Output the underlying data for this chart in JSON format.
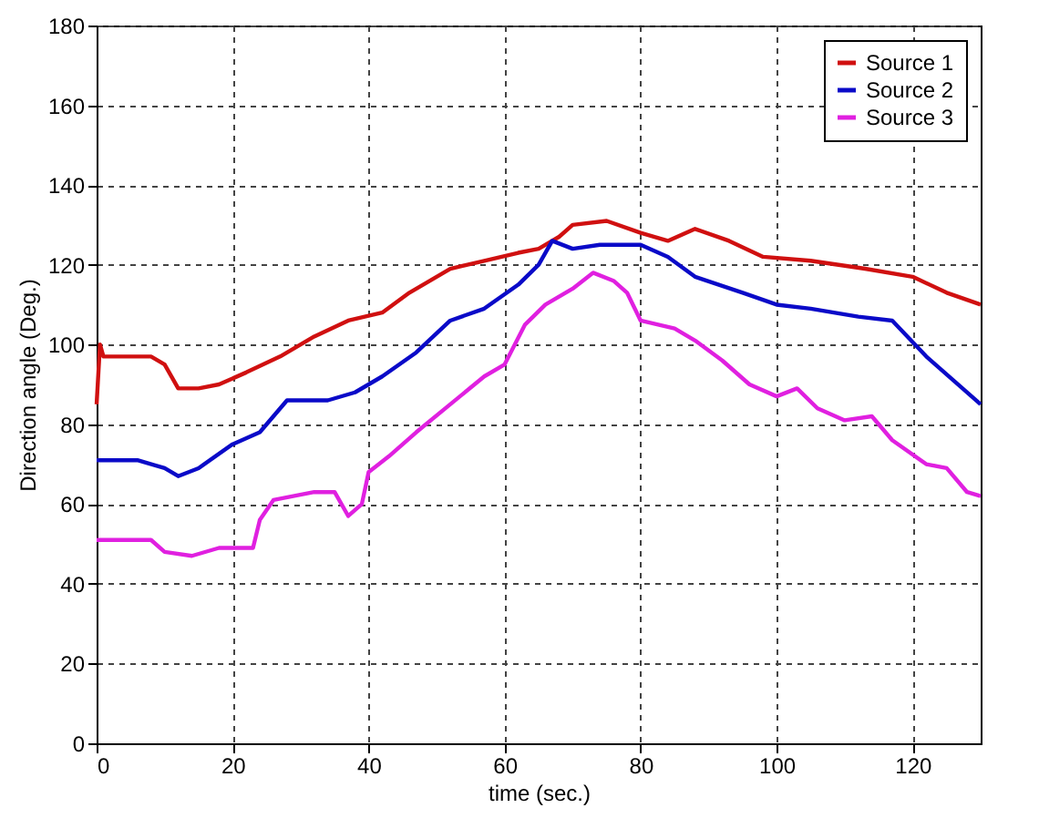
{
  "chart_data": {
    "type": "line",
    "xlabel": "time (sec.)",
    "ylabel": "Direction angle (Deg.)",
    "xlim": [
      0,
      130
    ],
    "xticks": [
      0,
      20,
      40,
      60,
      80,
      100,
      120
    ],
    "ylim": [
      0,
      180
    ],
    "yticks": [
      0,
      20,
      40,
      60,
      80,
      100,
      120,
      140,
      160,
      180
    ],
    "grid": true,
    "legend": "top right",
    "line_style": "solid",
    "marker": "none",
    "series": [
      {
        "name": "Source 1",
        "color": "#d01010",
        "x": [
          0,
          0.5,
          1,
          8,
          10,
          12,
          15,
          18,
          22,
          27,
          32,
          37,
          42,
          46,
          52,
          57,
          62,
          65,
          68,
          70,
          75,
          80,
          84,
          88,
          93,
          98,
          105,
          113,
          120,
          125,
          130
        ],
        "values": [
          85,
          100,
          97,
          97,
          95,
          89,
          89,
          90,
          93,
          97,
          102,
          106,
          108,
          113,
          119,
          121,
          123,
          124,
          127,
          130,
          131,
          128,
          126,
          129,
          126,
          122,
          121,
          119,
          117,
          113,
          110
        ]
      },
      {
        "name": "Source 2",
        "color": "#0a0ac8",
        "x": [
          0,
          6,
          10,
          12,
          15,
          20,
          24,
          28,
          34,
          38,
          42,
          47,
          52,
          57,
          62,
          65,
          67,
          70,
          74,
          80,
          84,
          88,
          95,
          100,
          105,
          112,
          117,
          122,
          126,
          130
        ],
        "values": [
          71,
          71,
          69,
          67,
          69,
          75,
          78,
          86,
          86,
          88,
          92,
          98,
          106,
          109,
          115,
          120,
          126,
          124,
          125,
          125,
          122,
          117,
          113,
          110,
          109,
          107,
          106,
          97,
          91,
          85
        ]
      },
      {
        "name": "Source 3",
        "color": "#e020e0",
        "x": [
          0,
          8,
          10,
          14,
          18,
          23,
          24,
          26,
          32,
          35,
          37,
          39,
          40,
          43,
          47,
          52,
          57,
          60,
          63,
          66,
          70,
          73,
          76,
          78,
          80,
          85,
          88,
          92,
          96,
          100,
          103,
          106,
          110,
          114,
          117,
          122,
          125,
          128,
          130
        ],
        "values": [
          51,
          51,
          48,
          47,
          49,
          49,
          56,
          61,
          63,
          63,
          57,
          60,
          68,
          72,
          78,
          85,
          92,
          95,
          105,
          110,
          114,
          118,
          116,
          113,
          106,
          104,
          101,
          96,
          90,
          87,
          89,
          84,
          81,
          82,
          76,
          70,
          69,
          63,
          62
        ]
      }
    ]
  }
}
